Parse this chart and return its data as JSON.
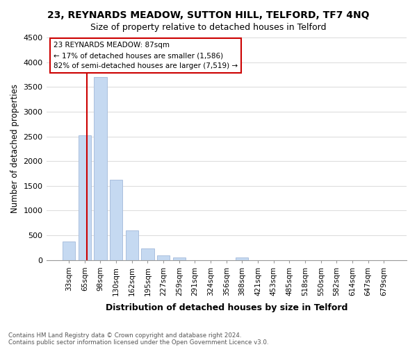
{
  "title": "23, REYNARDS MEADOW, SUTTON HILL, TELFORD, TF7 4NQ",
  "subtitle": "Size of property relative to detached houses in Telford",
  "xlabel": "Distribution of detached houses by size in Telford",
  "ylabel": "Number of detached properties",
  "bar_labels": [
    "33sqm",
    "65sqm",
    "98sqm",
    "130sqm",
    "162sqm",
    "195sqm",
    "227sqm",
    "259sqm",
    "291sqm",
    "324sqm",
    "356sqm",
    "388sqm",
    "421sqm",
    "453sqm",
    "485sqm",
    "518sqm",
    "550sqm",
    "582sqm",
    "614sqm",
    "647sqm",
    "679sqm"
  ],
  "bar_values": [
    375,
    2520,
    3700,
    1630,
    600,
    240,
    100,
    55,
    0,
    0,
    0,
    55,
    0,
    0,
    0,
    0,
    0,
    0,
    0,
    0,
    0
  ],
  "bar_color": "#c5d9f1",
  "bar_edge_color": "#aabfde",
  "ylim": [
    0,
    4500
  ],
  "yticks": [
    0,
    500,
    1000,
    1500,
    2000,
    2500,
    3000,
    3500,
    4000,
    4500
  ],
  "annotation_title": "23 REYNARDS MEADOW: 87sqm",
  "annotation_line1": "← 17% of detached houses are smaller (1,586)",
  "annotation_line2": "82% of semi-detached houses are larger (7,519) →",
  "annotation_box_color": "#ffffff",
  "annotation_box_edge": "#cc0000",
  "vertical_line_color": "#cc0000",
  "footnote1": "Contains HM Land Registry data © Crown copyright and database right 2024.",
  "footnote2": "Contains public sector information licensed under the Open Government Licence v3.0.",
  "background_color": "#ffffff",
  "grid_color": "#dddddd"
}
